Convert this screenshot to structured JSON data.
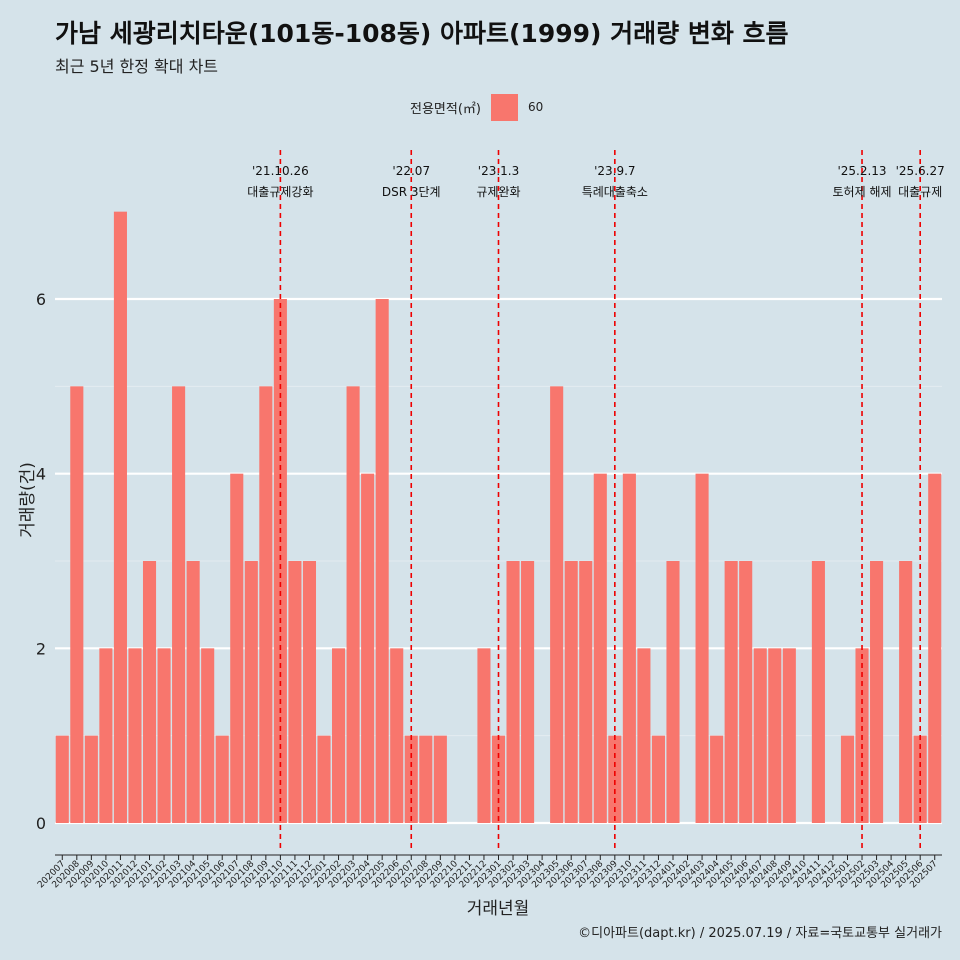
{
  "title": "가남 세광리치타운(101동-108동) 아파트(1999) 거래량 변화 흐름",
  "subtitle": "최근 5년 한정 확대 차트",
  "legend": {
    "title": "전용면적(㎡)",
    "label": "60",
    "color": "#f8766d"
  },
  "caption": "©디아파트(dapt.kr) / 2025.07.19 / 자료=국토교통부 실거래가",
  "chart_data": {
    "type": "bar",
    "xlabel": "거래년월",
    "ylabel": "거래량(건)",
    "ylim": [
      0,
      7
    ],
    "yticks": [
      0,
      2,
      4,
      6
    ],
    "grid": true,
    "legend_position": "top",
    "categories": [
      "202007",
      "202008",
      "202009",
      "202010",
      "202011",
      "202012",
      "202101",
      "202102",
      "202103",
      "202104",
      "202105",
      "202106",
      "202107",
      "202108",
      "202109",
      "202110",
      "202111",
      "202112",
      "202201",
      "202202",
      "202203",
      "202204",
      "202205",
      "202206",
      "202207",
      "202208",
      "202209",
      "202210",
      "202211",
      "202212",
      "202301",
      "202302",
      "202303",
      "202304",
      "202305",
      "202306",
      "202307",
      "202308",
      "202309",
      "202310",
      "202311",
      "202312",
      "202401",
      "202402",
      "202403",
      "202404",
      "202405",
      "202406",
      "202407",
      "202408",
      "202409",
      "202410",
      "202411",
      "202412",
      "202501",
      "202502",
      "202503",
      "202504",
      "202505",
      "202506",
      "202507"
    ],
    "series": [
      {
        "name": "60",
        "values": [
          1,
          5,
          1,
          2,
          7,
          2,
          3,
          2,
          5,
          3,
          2,
          1,
          4,
          3,
          5,
          6,
          3,
          3,
          1,
          2,
          5,
          4,
          6,
          2,
          1,
          1,
          1,
          0,
          0,
          2,
          1,
          3,
          3,
          0,
          5,
          3,
          3,
          4,
          1,
          4,
          2,
          1,
          3,
          0,
          4,
          1,
          3,
          3,
          2,
          2,
          2,
          0,
          3,
          0,
          1,
          2,
          3,
          0,
          3,
          1,
          4
        ]
      }
    ],
    "annotations": [
      {
        "category": "202110",
        "date": "'21.10.26",
        "label": "대출규제강화"
      },
      {
        "category": "202207",
        "date": "'22.07",
        "label": "DSR 3단계"
      },
      {
        "category": "202301",
        "date": "'23.1.3",
        "label": "규제완화"
      },
      {
        "category": "202309",
        "date": "'23.9.7",
        "label": "특례대출축소"
      },
      {
        "category": "202502",
        "date": "'25.2.13",
        "label": "토허제 해제"
      },
      {
        "category": "202506",
        "date": "'25.6.27",
        "label": "대출규제"
      }
    ],
    "bar_color": "#f8766d",
    "annotation_color": "#ee0000"
  }
}
